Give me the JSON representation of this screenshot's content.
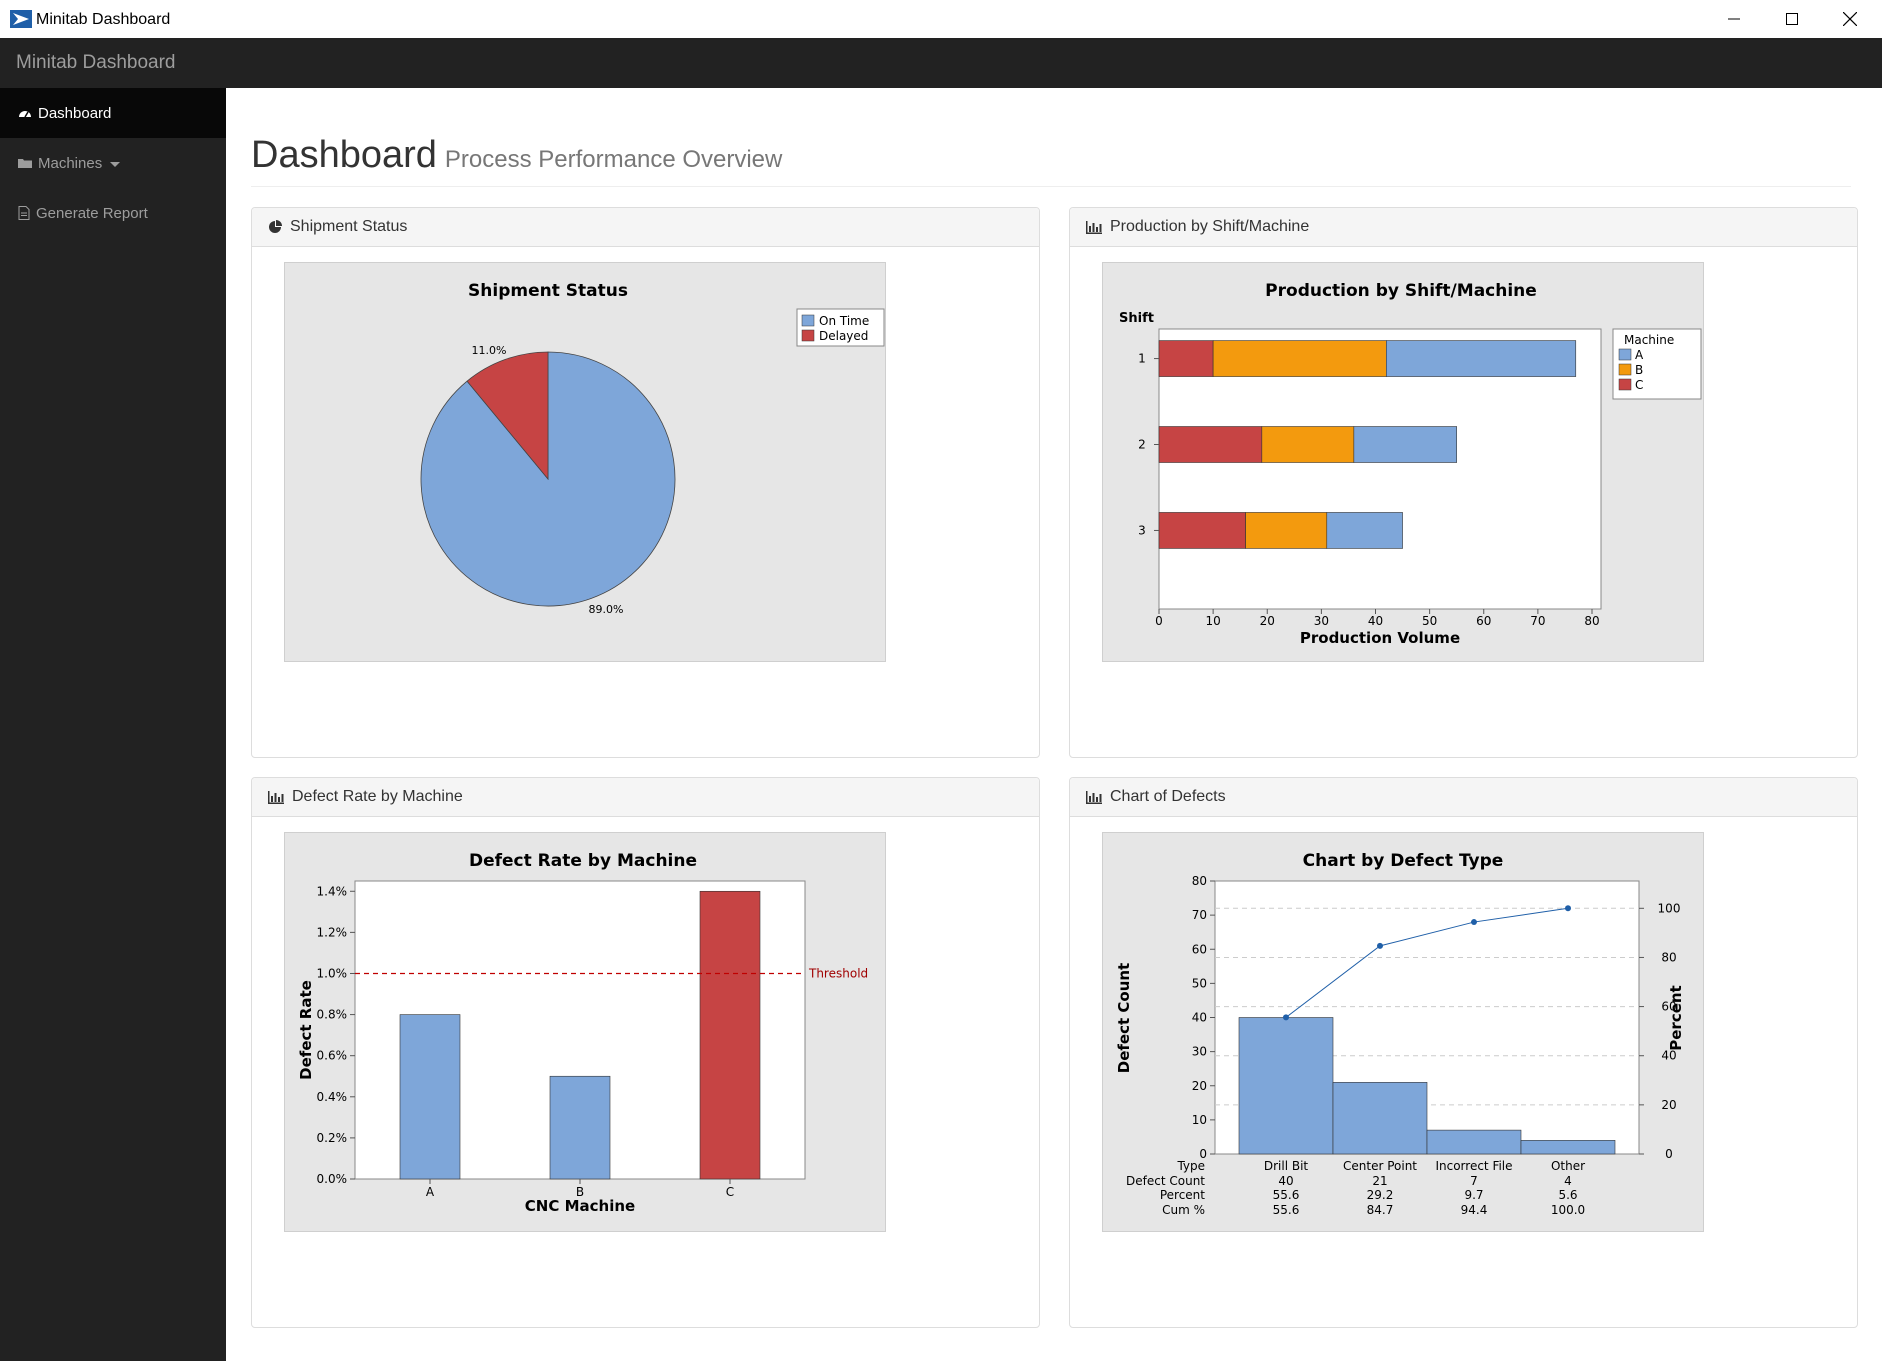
{
  "window": {
    "title": "Minitab Dashboard"
  },
  "navbar": {
    "brand": "Minitab Dashboard"
  },
  "sidebar": {
    "items": [
      {
        "label": "Dashboard",
        "icon": "dashboard-icon",
        "active": true
      },
      {
        "label": "Machines",
        "icon": "folder-icon",
        "active": false
      },
      {
        "label": "Generate Report",
        "icon": "document-icon",
        "active": false
      }
    ]
  },
  "page": {
    "title": "Dashboard",
    "subtitle": "Process Performance Overview"
  },
  "panels": [
    {
      "heading": "Shipment Status",
      "icon": "pie-chart-icon"
    },
    {
      "heading": "Production by Shift/Machine",
      "icon": "bar-chart-icon"
    },
    {
      "heading": "Defect Rate by Machine",
      "icon": "bar-chart-icon"
    },
    {
      "heading": "Chart of Defects",
      "icon": "bar-chart-icon"
    }
  ],
  "colors": {
    "blue": "#7EA6D9",
    "red": "#C64444",
    "orange": "#F39A0E",
    "navbar": "#222222",
    "threshold": "#C00000"
  },
  "chart_data": [
    {
      "type": "pie",
      "title": "Shipment Status",
      "labels": [
        "On Time",
        "Delayed"
      ],
      "values": [
        89.0,
        11.0
      ],
      "value_labels": [
        "89.0%",
        "11.0%"
      ],
      "legend": "top-right"
    },
    {
      "type": "bar",
      "orientation": "horizontal",
      "stacked": true,
      "title": "Production by Shift/Machine",
      "xlabel": "Production Volume",
      "ylabel": "Shift",
      "categories": [
        "1",
        "2",
        "3"
      ],
      "series": [
        {
          "name": "C",
          "values": [
            10,
            19,
            16
          ]
        },
        {
          "name": "B",
          "values": [
            32,
            17,
            15
          ]
        },
        {
          "name": "A",
          "values": [
            35,
            19,
            14
          ]
        }
      ],
      "legend_title": "Machine",
      "legend_entries": [
        "A",
        "B",
        "C"
      ],
      "xlim": [
        0,
        80
      ],
      "xticks": [
        "0",
        "10",
        "20",
        "30",
        "40",
        "50",
        "60",
        "70",
        "80"
      ]
    },
    {
      "type": "bar",
      "title": "Defect Rate by Machine",
      "xlabel": "CNC Machine",
      "ylabel": "Defect Rate",
      "categories": [
        "A",
        "B",
        "C"
      ],
      "values": [
        0.8,
        0.5,
        1.4
      ],
      "ylim": [
        0,
        1.45
      ],
      "yticks": [
        "0.0%",
        "0.2%",
        "0.4%",
        "0.6%",
        "0.8%",
        "1.0%",
        "1.2%",
        "1.4%"
      ],
      "threshold": {
        "value": 1.0,
        "label": "Threshold"
      }
    },
    {
      "type": "bar",
      "subtype": "pareto",
      "title": "Chart by Defect Type",
      "ylabel": "Defect Count",
      "y2label": "Percent",
      "categories": [
        "Drill Bit",
        "Center Point",
        "Incorrect File",
        "Other"
      ],
      "values": [
        40,
        21,
        7,
        4
      ],
      "cumulative_percent": [
        55.6,
        84.7,
        94.4,
        100.0
      ],
      "ylim": [
        0,
        80
      ],
      "yticks": [
        "0",
        "10",
        "20",
        "30",
        "40",
        "50",
        "60",
        "70",
        "80"
      ],
      "y2ticks": [
        "0",
        "20",
        "40",
        "60",
        "80",
        "100"
      ],
      "table": {
        "row_labels": [
          "Type",
          "Defect Count",
          "Percent",
          "Cum %"
        ],
        "rows": [
          [
            "Drill Bit",
            "Center Point",
            "Incorrect File",
            "Other"
          ],
          [
            "40",
            "21",
            "7",
            "4"
          ],
          [
            "55.6",
            "29.2",
            "9.7",
            "5.6"
          ],
          [
            "55.6",
            "84.7",
            "94.4",
            "100.0"
          ]
        ]
      }
    }
  ]
}
